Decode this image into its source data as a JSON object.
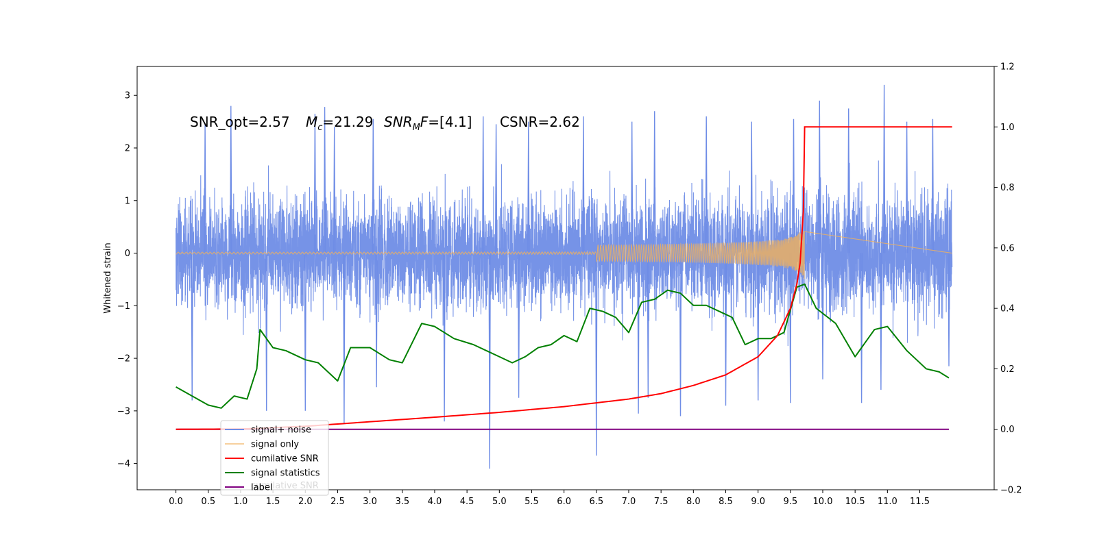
{
  "chart_data": {
    "type": "line",
    "title": "",
    "xlabel": "",
    "ylabel": "Whitened strain",
    "xlim": [
      -0.6,
      12.65
    ],
    "ylim": [
      -4.5,
      3.55
    ],
    "ylim_right": [
      -0.2,
      1.2
    ],
    "x_ticks": [
      0.0,
      0.5,
      1.0,
      1.5,
      2.0,
      2.5,
      3.0,
      3.5,
      4.0,
      4.5,
      5.0,
      5.5,
      6.0,
      6.5,
      7.0,
      7.5,
      8.0,
      8.5,
      9.0,
      9.5,
      10.0,
      10.5,
      11.0,
      11.5
    ],
    "x_tick_labels": [
      "0.0",
      "0.5",
      "1.0",
      "1.5",
      "2.0",
      "2.5",
      "3.0",
      "3.5",
      "4.0",
      "4.5",
      "5.0",
      "5.5",
      "6.0",
      "6.5",
      "7.0",
      "7.5",
      "8.0",
      "8.5",
      "9.0",
      "9.5",
      "10.0",
      "10.5",
      "11.0",
      "11.5"
    ],
    "y_ticks_left": [
      3,
      2,
      1,
      0,
      -1,
      -2,
      -3,
      -4
    ],
    "y_tick_labels_left": [
      "3",
      "2",
      "1",
      "0",
      "−1",
      "−2",
      "−3",
      "−4"
    ],
    "y_ticks_right": [
      1.2,
      1.0,
      0.8,
      0.6,
      0.4,
      0.2,
      0.0,
      -0.2
    ],
    "y_tick_labels_right": [
      "1.2",
      "1.0",
      "0.8",
      "0.6",
      "0.4",
      "0.2",
      "0.0",
      "−0.2"
    ],
    "annotation": {
      "snr_opt": "SNR_opt=2.57",
      "mc_symbol": "M",
      "mc_sub": "c",
      "mc_value": "=21.29",
      "snrmf_symbol": "SNR",
      "snrmf_sub": "M",
      "snrmf_tail": "F",
      "snrmf_value": "=[4.1]",
      "csnr": "CSNR=2.62"
    },
    "legend": {
      "placement": "lower-left",
      "entries": [
        "signal+ noise",
        "signal only",
        "cumilative SNR",
        "signal statistics",
        "label"
      ],
      "hidden_entry_text": "cumilative SNR"
    },
    "series": [
      {
        "name": "signal+ noise",
        "axis": "left",
        "color": "#6f8de6",
        "noise_band": [
          -1.45,
          1.45
        ],
        "x_range": [
          0.0,
          12.0
        ],
        "prominent_peaks": [
          [
            0.45,
            2.45
          ],
          [
            0.85,
            2.8
          ],
          [
            2.15,
            2.65
          ],
          [
            2.3,
            2.78
          ],
          [
            2.45,
            2.4
          ],
          [
            3.05,
            2.55
          ],
          [
            4.75,
            2.6
          ],
          [
            4.95,
            2.45
          ],
          [
            5.45,
            2.5
          ],
          [
            6.3,
            2.6
          ],
          [
            7.05,
            2.5
          ],
          [
            7.4,
            2.7
          ],
          [
            8.2,
            2.6
          ],
          [
            8.9,
            2.5
          ],
          [
            9.55,
            2.55
          ],
          [
            9.95,
            2.9
          ],
          [
            10.4,
            2.75
          ],
          [
            10.95,
            3.2
          ],
          [
            11.3,
            2.5
          ],
          [
            11.7,
            2.55
          ]
        ],
        "prominent_troughs": [
          [
            0.25,
            -2.8
          ],
          [
            1.4,
            -3.0
          ],
          [
            2.0,
            -3.0
          ],
          [
            2.6,
            -3.25
          ],
          [
            3.1,
            -2.55
          ],
          [
            4.15,
            -3.2
          ],
          [
            4.85,
            -4.1
          ],
          [
            5.3,
            -2.75
          ],
          [
            6.5,
            -3.85
          ],
          [
            7.3,
            -2.75
          ],
          [
            7.15,
            -3.05
          ],
          [
            7.8,
            -3.1
          ],
          [
            8.5,
            -2.9
          ],
          [
            9.0,
            -2.8
          ],
          [
            9.5,
            -2.85
          ],
          [
            10.0,
            -2.4
          ],
          [
            10.6,
            -2.85
          ],
          [
            10.9,
            -2.6
          ],
          [
            11.95,
            -2.15
          ]
        ]
      },
      {
        "name": "signal only",
        "axis": "left",
        "color": "#f2b15b",
        "chirp_start": 6.5,
        "chirp_end": 9.72,
        "peak_amplitude": 0.5
      },
      {
        "name": "cumilative SNR",
        "axis": "right",
        "color": "#ff0000",
        "x": [
          0.0,
          1.0,
          2.0,
          3.0,
          4.0,
          5.0,
          6.0,
          7.0,
          7.5,
          8.0,
          8.5,
          9.0,
          9.3,
          9.5,
          9.6,
          9.65,
          9.7,
          9.72,
          12.0
        ],
        "values": [
          0.0,
          0.001,
          0.01,
          0.025,
          0.04,
          0.056,
          0.075,
          0.1,
          0.118,
          0.145,
          0.18,
          0.24,
          0.31,
          0.4,
          0.48,
          0.55,
          0.72,
          1.0,
          1.0
        ]
      },
      {
        "name": "signal statistics",
        "axis": "right",
        "color": "#008000",
        "x": [
          0.0,
          0.25,
          0.5,
          0.7,
          0.9,
          1.1,
          1.25,
          1.3,
          1.5,
          1.7,
          2.0,
          2.2,
          2.5,
          2.7,
          3.0,
          3.3,
          3.5,
          3.8,
          4.0,
          4.3,
          4.6,
          4.8,
          5.0,
          5.2,
          5.4,
          5.6,
          5.8,
          6.0,
          6.2,
          6.4,
          6.6,
          6.8,
          7.0,
          7.2,
          7.4,
          7.6,
          7.8,
          8.0,
          8.2,
          8.4,
          8.6,
          8.8,
          9.0,
          9.2,
          9.4,
          9.6,
          9.72,
          9.9,
          10.2,
          10.5,
          10.8,
          11.0,
          11.3,
          11.6,
          11.8,
          11.95
        ],
        "values": [
          0.14,
          0.11,
          0.08,
          0.07,
          0.11,
          0.1,
          0.2,
          0.33,
          0.27,
          0.26,
          0.23,
          0.22,
          0.16,
          0.27,
          0.27,
          0.23,
          0.22,
          0.35,
          0.34,
          0.3,
          0.28,
          0.26,
          0.24,
          0.22,
          0.24,
          0.27,
          0.28,
          0.31,
          0.29,
          0.4,
          0.39,
          0.37,
          0.32,
          0.42,
          0.43,
          0.46,
          0.45,
          0.41,
          0.41,
          0.39,
          0.37,
          0.28,
          0.3,
          0.3,
          0.32,
          0.47,
          0.48,
          0.4,
          0.35,
          0.24,
          0.33,
          0.34,
          0.26,
          0.2,
          0.19,
          0.17
        ]
      },
      {
        "name": "label",
        "axis": "right",
        "color": "#800080",
        "x": [
          0.0,
          11.95
        ],
        "values": [
          0.0,
          0.0
        ]
      }
    ]
  }
}
